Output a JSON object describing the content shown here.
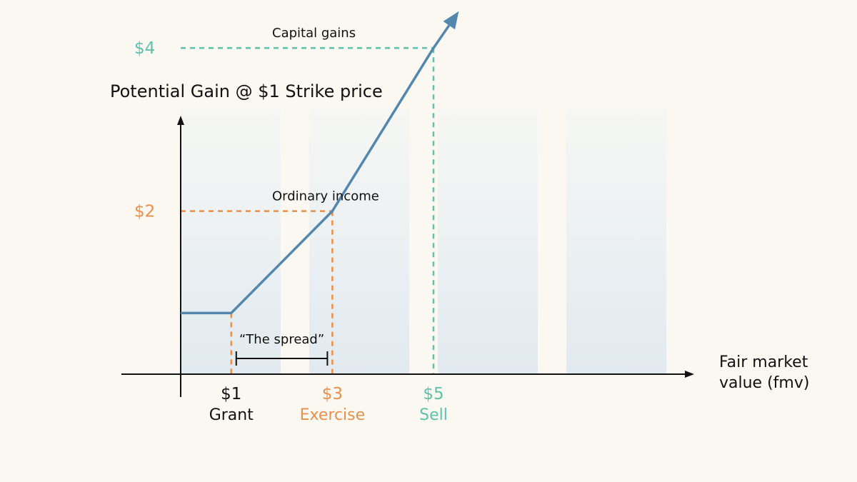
{
  "colors": {
    "background": "#fbf8f2",
    "band_top": "#f6f7f4",
    "band_bottom": "#e1eaf0",
    "axis": "#111111",
    "line": "#5387ae",
    "capital": "#5cc2ac",
    "ordinary": "#e8904a",
    "text": "#111111"
  },
  "chart_data": {
    "type": "line",
    "title": "Potential Gain @ $1 Strike price",
    "xlabel": [
      "Fair market",
      "value (fmv)"
    ],
    "series": [
      {
        "name": "",
        "points": [
          [
            0,
            0.75
          ],
          [
            1,
            0.75
          ],
          [
            3,
            2
          ],
          [
            5,
            4
          ],
          [
            5.5,
            4.45
          ]
        ]
      }
    ],
    "x_ticks": [
      {
        "x": 1,
        "value": "$1",
        "label": "Grant",
        "color": "axis",
        "guide_to": 0.75
      },
      {
        "x": 3,
        "value": "$3",
        "label": "Exercise",
        "color": "ordinary",
        "guide_to": 2
      },
      {
        "x": 5,
        "value": "$5",
        "label": "Sell",
        "color": "capital",
        "guide_to": 4
      }
    ],
    "y_ticks": [
      {
        "y": 2,
        "label": "$2",
        "color": "ordinary",
        "caption": "Ordinary income"
      },
      {
        "y": 4,
        "label": "$4",
        "color": "capital",
        "caption": "Capital gains"
      }
    ],
    "annotation": {
      "text": "“The spread”",
      "from": 1,
      "to": 3,
      "y": 0.15
    },
    "background_bands": 4,
    "grid": false,
    "legend": "none"
  }
}
